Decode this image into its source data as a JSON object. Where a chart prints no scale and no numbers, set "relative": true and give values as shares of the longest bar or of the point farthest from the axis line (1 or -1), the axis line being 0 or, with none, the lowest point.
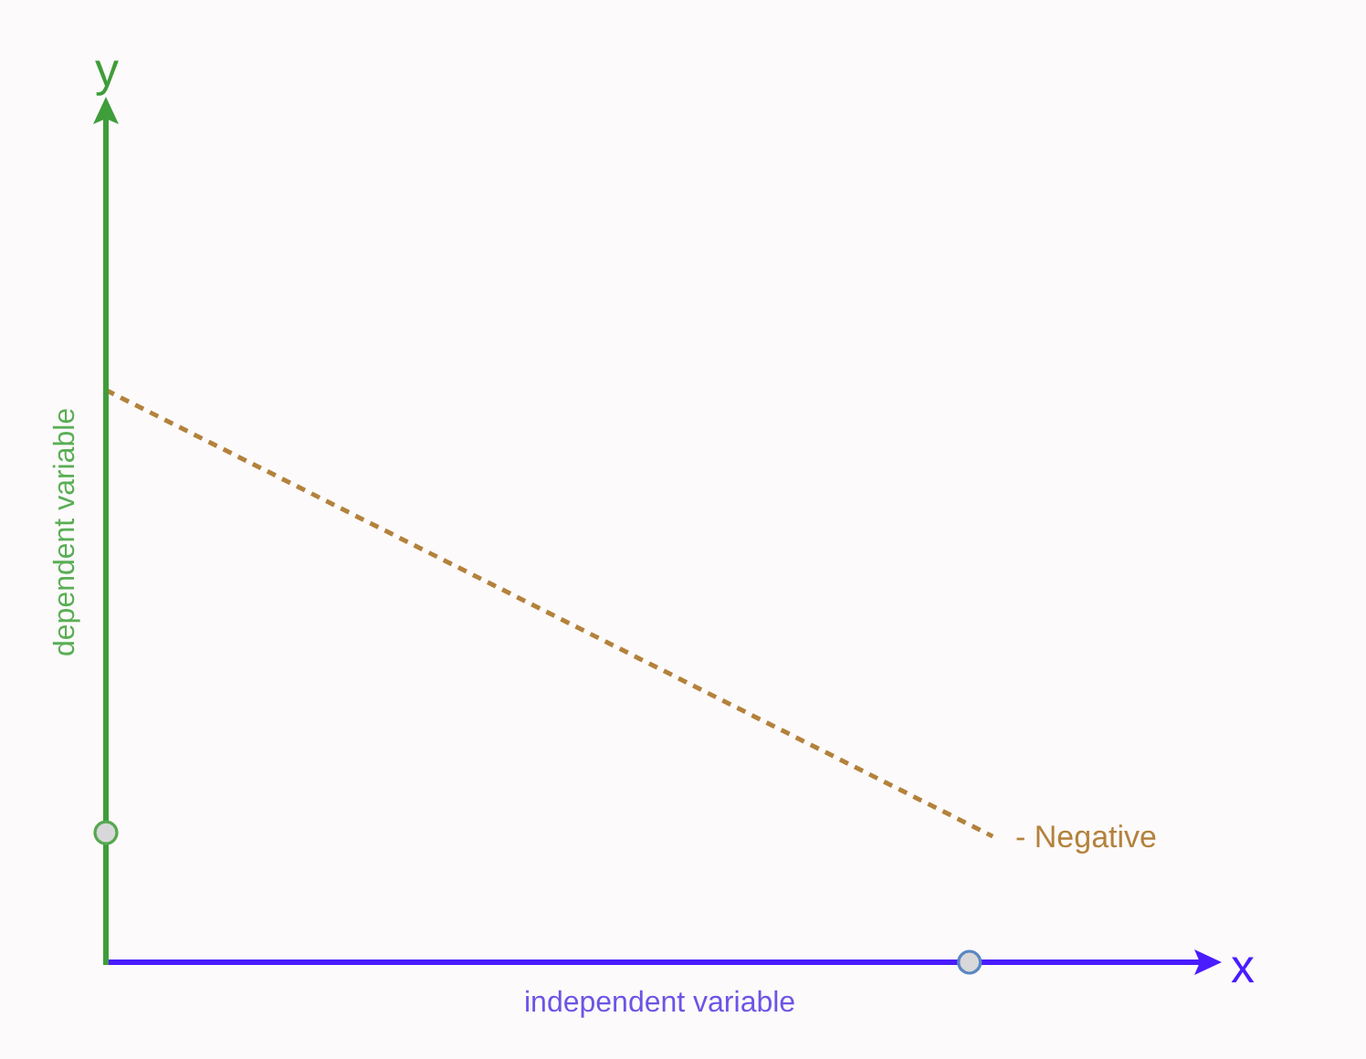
{
  "chart_data": {
    "type": "line",
    "relative": true,
    "categories": [
      null,
      null,
      null,
      null,
      null,
      null
    ],
    "series": [
      {
        "name": "- Negative",
        "color": "#b3823c",
        "values": [
          1,
          0.805,
          0.61,
          0.415,
          0.22,
          null
        ]
      }
    ],
    "line_style": "dashed",
    "xlabel": "independent variable",
    "ylabel": "dependent variable",
    "annotations": [
      "y",
      "x"
    ]
  }
}
